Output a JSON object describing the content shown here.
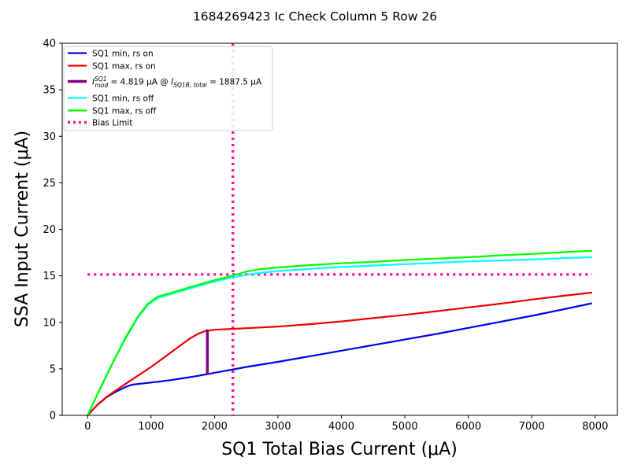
{
  "chart_data": {
    "type": "line",
    "title": "1684269423 Ic Check Column 5 Row 26",
    "xlabel": "SQ1 Total Bias Current (μA)",
    "ylabel": "SSA Input Current (μA)",
    "xlim": [
      -400,
      8350
    ],
    "ylim": [
      0,
      40
    ],
    "xticks": [
      0,
      1000,
      2000,
      3000,
      4000,
      5000,
      6000,
      7000,
      8000
    ],
    "yticks": [
      0,
      5,
      10,
      15,
      20,
      25,
      30,
      35,
      40
    ],
    "grid": false,
    "legend_position": "top-left",
    "legend": [
      {
        "series": "sq1_min_rs_on",
        "label": "SQ1 min, rs on"
      },
      {
        "series": "sq1_max_rs_on",
        "label": "SQ1 max, rs on"
      },
      {
        "series": "imod",
        "label_parts": {
          "i": "I",
          "sup": "SQ1",
          "sub": "mod",
          "eq": " = 4.819 μA @ ",
          "i2": "I",
          "sub2": "SQ1B, total",
          "eq2": " = 1887.5 μA"
        }
      },
      {
        "series": "sq1_min_rs_off",
        "label": "SQ1 min, rs off"
      },
      {
        "series": "sq1_max_rs_off",
        "label": "SQ1 max, rs off"
      },
      {
        "series": "bias_limit",
        "label": "Bias Limit"
      }
    ],
    "series": [
      {
        "id": "sq1_min_rs_on",
        "name": "SQ1 min, rs on",
        "color": "#0000ee",
        "style": "solid",
        "x": [
          0,
          150,
          300,
          450,
          600,
          700,
          900,
          1100,
          1300,
          1500,
          1700,
          1900,
          2100,
          2300,
          2500,
          3000,
          3500,
          4000,
          4500,
          5000,
          5500,
          6000,
          6500,
          7000,
          7500,
          7950
        ],
        "y": [
          0,
          1.1,
          1.95,
          2.55,
          3.05,
          3.3,
          3.45,
          3.6,
          3.78,
          3.98,
          4.2,
          4.45,
          4.7,
          4.95,
          5.2,
          5.75,
          6.35,
          6.95,
          7.55,
          8.15,
          8.75,
          9.4,
          10.05,
          10.7,
          11.4,
          12.05
        ]
      },
      {
        "id": "sq1_max_rs_on",
        "name": "SQ1 max, rs on",
        "color": "#ee0000",
        "style": "solid",
        "x": [
          0,
          150,
          300,
          450,
          600,
          800,
          1000,
          1200,
          1400,
          1600,
          1750,
          1850,
          2000,
          2300,
          2600,
          3000,
          3500,
          4000,
          4500,
          5000,
          5500,
          6000,
          6500,
          7000,
          7500,
          7950
        ],
        "y": [
          0,
          1.1,
          2.0,
          2.7,
          3.4,
          4.3,
          5.2,
          6.2,
          7.2,
          8.2,
          8.8,
          9.05,
          9.2,
          9.3,
          9.4,
          9.55,
          9.8,
          10.1,
          10.45,
          10.8,
          11.2,
          11.6,
          12.0,
          12.45,
          12.85,
          13.2
        ]
      },
      {
        "id": "sq1_min_rs_off",
        "name": "SQ1 min, rs off",
        "color": "#00ffff",
        "style": "solid",
        "x": [
          0,
          200,
          400,
          600,
          800,
          950,
          1100,
          1300,
          1500,
          1700,
          1900,
          2100,
          2300,
          2500,
          2700,
          3000,
          3500,
          4000,
          4500,
          5000,
          5500,
          6000,
          6500,
          7000,
          7500,
          7950
        ],
        "y": [
          0,
          2.9,
          5.7,
          8.3,
          10.6,
          11.9,
          12.6,
          13.0,
          13.4,
          13.8,
          14.2,
          14.55,
          14.85,
          15.1,
          15.3,
          15.5,
          15.75,
          15.95,
          16.1,
          16.25,
          16.4,
          16.55,
          16.65,
          16.75,
          16.9,
          17.0
        ]
      },
      {
        "id": "sq1_max_rs_off",
        "name": "SQ1 max, rs off",
        "color": "#00ff00",
        "style": "solid",
        "x": [
          0,
          200,
          400,
          600,
          800,
          950,
          1100,
          1300,
          1500,
          1700,
          1900,
          2100,
          2300,
          2500,
          2700,
          3000,
          3500,
          4000,
          4500,
          5000,
          5500,
          6000,
          6500,
          7000,
          7500,
          7950
        ],
        "y": [
          0,
          2.9,
          5.7,
          8.4,
          10.7,
          12.0,
          12.75,
          13.15,
          13.55,
          13.95,
          14.35,
          14.7,
          15.05,
          15.45,
          15.7,
          15.9,
          16.15,
          16.35,
          16.5,
          16.7,
          16.85,
          17.0,
          17.2,
          17.35,
          17.55,
          17.7
        ]
      }
    ],
    "imod": {
      "color": "#7f007f",
      "x": 1887.5,
      "y_bottom": 4.42,
      "y_top": 9.24
    },
    "bias_limit": {
      "color": "#ff1493",
      "style": "dotted",
      "x": 2290,
      "y": 15.15,
      "x_from": 0,
      "x_to": 7950
    }
  }
}
